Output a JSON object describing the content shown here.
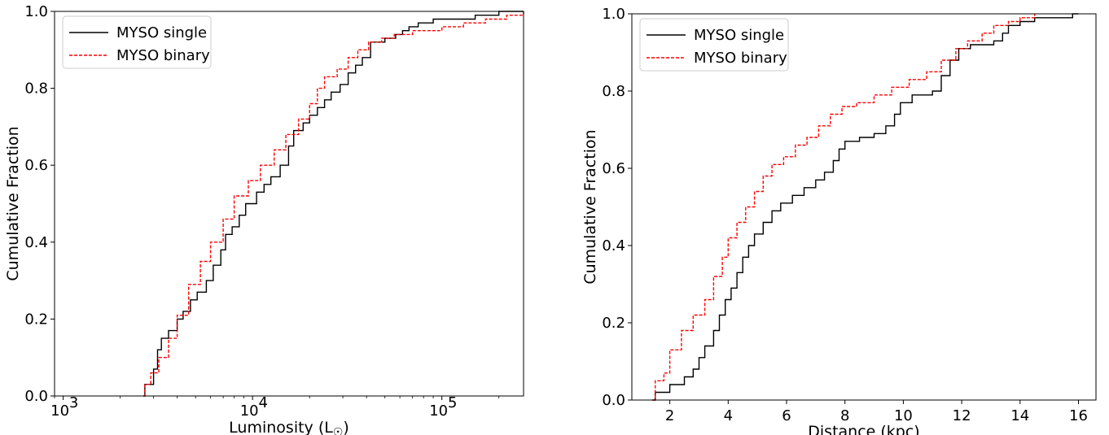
{
  "chart_data": [
    {
      "type": "line",
      "step": true,
      "xscale": "log",
      "xlim": [
        900,
        270000
      ],
      "ylim": [
        0,
        1
      ],
      "xlabel": "Luminosity (L",
      "xlabel_sub": "☉",
      "xlabel_end": ")",
      "ylabel": "Cumulative Fraction",
      "x_ticks": [
        {
          "value": 1000,
          "base": "10",
          "exp": "3"
        },
        {
          "value": 10000,
          "base": "10",
          "exp": "4"
        },
        {
          "value": 100000,
          "base": "10",
          "exp": "5"
        }
      ],
      "y_ticks": [
        "0.0",
        "0.2",
        "0.4",
        "0.6",
        "0.8",
        "1.0"
      ],
      "legend_position": "top-left",
      "grid": false,
      "series": [
        {
          "name": "MYSO single",
          "color": "#000000",
          "dash": "solid",
          "points": [
            [
              2650,
              0
            ],
            [
              2700,
              0.03
            ],
            [
              3000,
              0.07
            ],
            [
              3150,
              0.12
            ],
            [
              3300,
              0.15
            ],
            [
              3600,
              0.17
            ],
            [
              4000,
              0.2
            ],
            [
              4300,
              0.22
            ],
            [
              4700,
              0.25
            ],
            [
              5100,
              0.27
            ],
            [
              5700,
              0.3
            ],
            [
              6200,
              0.34
            ],
            [
              6800,
              0.38
            ],
            [
              7200,
              0.42
            ],
            [
              7800,
              0.44
            ],
            [
              8500,
              0.47
            ],
            [
              9200,
              0.5
            ],
            [
              10500,
              0.53
            ],
            [
              11500,
              0.55
            ],
            [
              12500,
              0.57
            ],
            [
              14000,
              0.6
            ],
            [
              15500,
              0.65
            ],
            [
              16500,
              0.69
            ],
            [
              18500,
              0.71
            ],
            [
              20000,
              0.73
            ],
            [
              22000,
              0.75
            ],
            [
              24000,
              0.77
            ],
            [
              26000,
              0.79
            ],
            [
              29000,
              0.81
            ],
            [
              32000,
              0.84
            ],
            [
              35000,
              0.86
            ],
            [
              38000,
              0.88
            ],
            [
              42000,
              0.92
            ],
            [
              50000,
              0.93
            ],
            [
              57000,
              0.94
            ],
            [
              62000,
              0.95
            ],
            [
              67000,
              0.96
            ],
            [
              75000,
              0.97
            ],
            [
              90000,
              0.98
            ],
            [
              150000,
              0.99
            ],
            [
              200000,
              1.0
            ],
            [
              270000,
              1.0
            ]
          ]
        },
        {
          "name": "MYSO binary",
          "color": "#ff0000",
          "dash": "dashed",
          "points": [
            [
              2650,
              0
            ],
            [
              2700,
              0.03
            ],
            [
              2900,
              0.06
            ],
            [
              3200,
              0.1
            ],
            [
              3600,
              0.15
            ],
            [
              4000,
              0.21
            ],
            [
              4600,
              0.29
            ],
            [
              5300,
              0.35
            ],
            [
              6000,
              0.4
            ],
            [
              7000,
              0.46
            ],
            [
              8000,
              0.52
            ],
            [
              9500,
              0.56
            ],
            [
              11000,
              0.6
            ],
            [
              13000,
              0.64
            ],
            [
              15000,
              0.68
            ],
            [
              17500,
              0.72
            ],
            [
              20000,
              0.76
            ],
            [
              22000,
              0.8
            ],
            [
              24000,
              0.83
            ],
            [
              28000,
              0.85
            ],
            [
              32000,
              0.88
            ],
            [
              36000,
              0.9
            ],
            [
              41000,
              0.92
            ],
            [
              48000,
              0.93
            ],
            [
              56000,
              0.94
            ],
            [
              70000,
              0.95
            ],
            [
              100000,
              0.96
            ],
            [
              130000,
              0.97
            ],
            [
              170000,
              0.98
            ],
            [
              220000,
              0.99
            ],
            [
              270000,
              1.0
            ]
          ]
        }
      ]
    },
    {
      "type": "line",
      "step": true,
      "xscale": "linear",
      "xlim": [
        0.7,
        16.6
      ],
      "ylim": [
        0,
        1
      ],
      "xlabel": "Distance (kpc)",
      "ylabel": "Cumulative Fraction",
      "x_ticks": [
        2,
        4,
        6,
        8,
        10,
        12,
        14,
        16
      ],
      "y_ticks": [
        "0.0",
        "0.2",
        "0.4",
        "0.6",
        "0.8",
        "1.0"
      ],
      "legend_position": "top-left",
      "grid": false,
      "series": [
        {
          "name": "MYSO single",
          "color": "#000000",
          "dash": "solid",
          "points": [
            [
              1.4,
              0
            ],
            [
              1.5,
              0.02
            ],
            [
              2.0,
              0.04
            ],
            [
              2.5,
              0.06
            ],
            [
              2.8,
              0.08
            ],
            [
              3.0,
              0.11
            ],
            [
              3.2,
              0.14
            ],
            [
              3.5,
              0.18
            ],
            [
              3.7,
              0.22
            ],
            [
              3.9,
              0.26
            ],
            [
              4.1,
              0.29
            ],
            [
              4.3,
              0.33
            ],
            [
              4.5,
              0.37
            ],
            [
              4.7,
              0.4
            ],
            [
              4.9,
              0.43
            ],
            [
              5.2,
              0.46
            ],
            [
              5.5,
              0.49
            ],
            [
              5.8,
              0.51
            ],
            [
              6.2,
              0.53
            ],
            [
              6.6,
              0.55
            ],
            [
              7.0,
              0.57
            ],
            [
              7.3,
              0.59
            ],
            [
              7.6,
              0.62
            ],
            [
              7.8,
              0.65
            ],
            [
              8.0,
              0.67
            ],
            [
              8.5,
              0.68
            ],
            [
              9.0,
              0.69
            ],
            [
              9.4,
              0.71
            ],
            [
              9.7,
              0.74
            ],
            [
              9.9,
              0.77
            ],
            [
              10.3,
              0.79
            ],
            [
              11.0,
              0.8
            ],
            [
              11.3,
              0.84
            ],
            [
              11.6,
              0.88
            ],
            [
              11.9,
              0.91
            ],
            [
              12.3,
              0.92
            ],
            [
              13.1,
              0.93
            ],
            [
              13.4,
              0.95
            ],
            [
              13.6,
              0.97
            ],
            [
              14.0,
              0.98
            ],
            [
              14.5,
              0.99
            ],
            [
              15.8,
              1.0
            ],
            [
              16.0,
              1.0
            ]
          ]
        },
        {
          "name": "MYSO binary",
          "color": "#ff0000",
          "dash": "dashed",
          "points": [
            [
              1.4,
              0
            ],
            [
              1.5,
              0.05
            ],
            [
              1.8,
              0.07
            ],
            [
              2.0,
              0.13
            ],
            [
              2.4,
              0.18
            ],
            [
              2.8,
              0.22
            ],
            [
              3.2,
              0.26
            ],
            [
              3.5,
              0.32
            ],
            [
              3.8,
              0.37
            ],
            [
              4.0,
              0.42
            ],
            [
              4.3,
              0.46
            ],
            [
              4.6,
              0.5
            ],
            [
              4.9,
              0.54
            ],
            [
              5.2,
              0.58
            ],
            [
              5.5,
              0.61
            ],
            [
              5.9,
              0.63
            ],
            [
              6.3,
              0.66
            ],
            [
              6.7,
              0.68
            ],
            [
              7.1,
              0.71
            ],
            [
              7.5,
              0.74
            ],
            [
              7.9,
              0.76
            ],
            [
              8.4,
              0.77
            ],
            [
              9.0,
              0.79
            ],
            [
              9.6,
              0.81
            ],
            [
              10.2,
              0.83
            ],
            [
              10.8,
              0.85
            ],
            [
              11.3,
              0.88
            ],
            [
              11.8,
              0.91
            ],
            [
              12.2,
              0.93
            ],
            [
              12.7,
              0.95
            ],
            [
              13.1,
              0.97
            ],
            [
              13.6,
              0.98
            ],
            [
              14.0,
              0.99
            ],
            [
              14.5,
              1.0
            ]
          ]
        }
      ]
    }
  ]
}
